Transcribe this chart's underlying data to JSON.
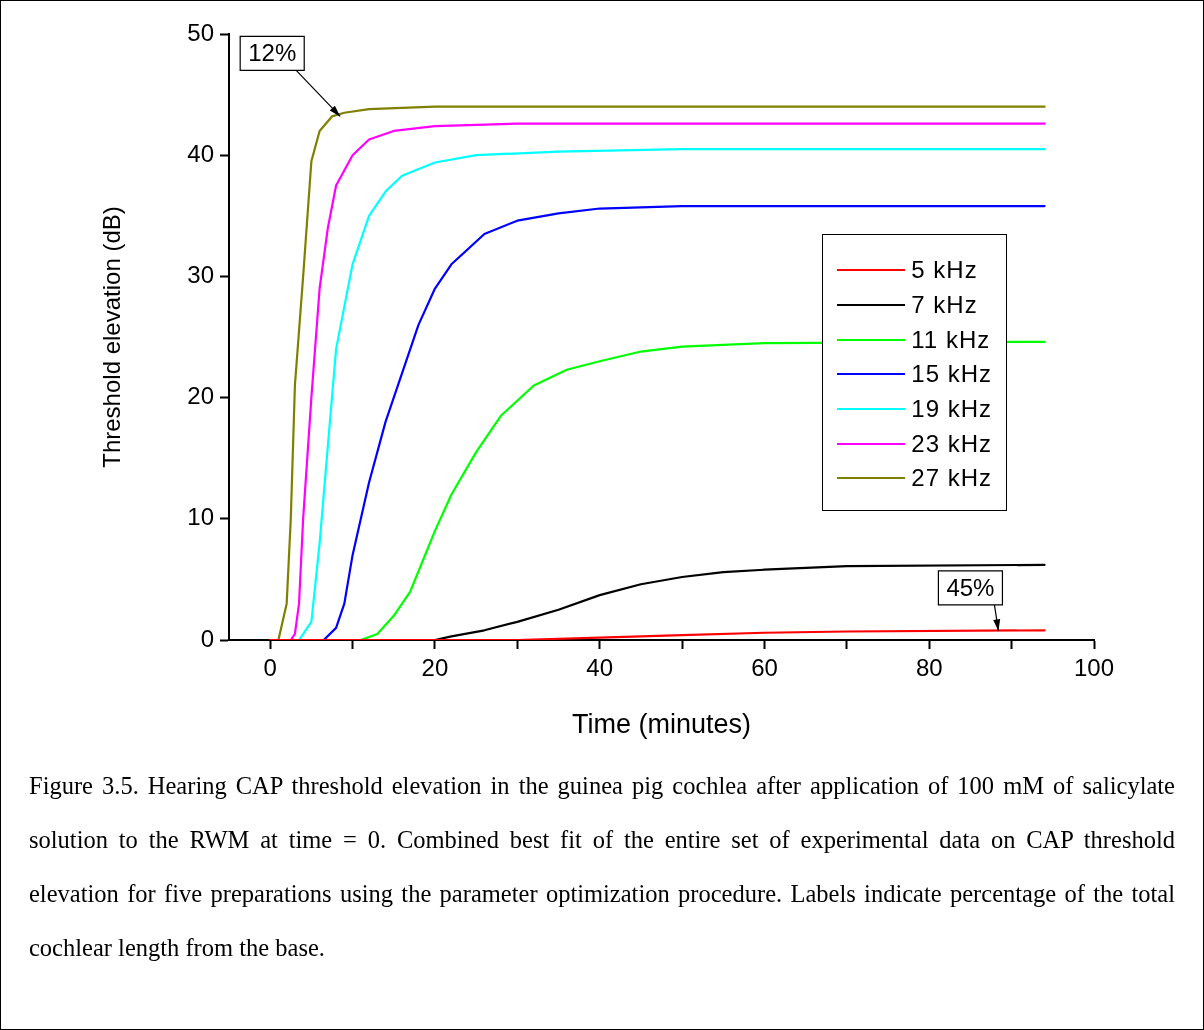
{
  "chart_data": {
    "type": "line",
    "xlabel": "Time (minutes)",
    "ylabel": "Threshold elevation (dB)",
    "xlim": [
      -5,
      100
    ],
    "xticks": [
      0,
      {
        "value": 10,
        "label": null
      },
      20,
      {
        "value": 30,
        "label": null
      },
      40,
      {
        "value": 50,
        "label": null
      },
      60,
      {
        "value": 70,
        "label": null
      },
      80,
      {
        "value": 90,
        "label": null
      },
      100
    ],
    "ylim": [
      0,
      50
    ],
    "yticks": [
      0,
      10,
      20,
      30,
      40,
      50
    ],
    "grid": false,
    "legend": "right",
    "marker": "none",
    "line_style": "solid",
    "series": [
      {
        "name": "5 kHz",
        "color": "#ff0000",
        "x": [
          0,
          30,
          40,
          50,
          60,
          70,
          94
        ],
        "values": [
          0,
          0,
          0.2,
          0.4,
          0.6,
          0.7,
          0.8
        ]
      },
      {
        "name": "7 kHz",
        "color": "#000000",
        "x": [
          0,
          20,
          22,
          26,
          30,
          35,
          40,
          45,
          50,
          55,
          60,
          70,
          94
        ],
        "values": [
          0,
          0,
          0.3,
          0.8,
          1.5,
          2.5,
          3.7,
          4.6,
          5.2,
          5.6,
          5.8,
          6.1,
          6.2
        ]
      },
      {
        "name": "11 kHz",
        "color": "#00ff00",
        "x": [
          0,
          11,
          13,
          15,
          17,
          20,
          22,
          25,
          28,
          32,
          36,
          40,
          45,
          50,
          60,
          94
        ],
        "values": [
          0,
          0,
          0.5,
          2,
          4,
          9,
          12,
          15.5,
          18.5,
          21,
          22.3,
          23,
          23.8,
          24.2,
          24.5,
          24.6
        ]
      },
      {
        "name": "15 kHz",
        "color": "#0000ff",
        "x": [
          0,
          6.5,
          8,
          9,
          10,
          12,
          14,
          16,
          18,
          20,
          22,
          26,
          30,
          35,
          40,
          50,
          94
        ],
        "values": [
          0,
          0,
          1,
          3,
          7,
          13,
          18,
          22,
          26,
          29,
          31,
          33.5,
          34.6,
          35.2,
          35.6,
          35.8,
          35.8
        ]
      },
      {
        "name": "19 kHz",
        "color": "#00ffff",
        "x": [
          0,
          3.5,
          5,
          6,
          7,
          8,
          10,
          12,
          14,
          16,
          20,
          25,
          35,
          50,
          94
        ],
        "values": [
          0,
          0,
          1.5,
          8,
          16,
          24,
          31,
          35,
          37,
          38.3,
          39.4,
          40,
          40.3,
          40.5,
          40.5
        ]
      },
      {
        "name": "23 kHz",
        "color": "#ff00ff",
        "x": [
          0,
          2.5,
          3,
          3.5,
          4,
          5,
          6,
          7,
          8,
          10,
          12,
          15,
          20,
          30,
          94
        ],
        "values": [
          0,
          0,
          0.5,
          3,
          10,
          20,
          29,
          34,
          37.5,
          40,
          41.3,
          42,
          42.4,
          42.6,
          42.6
        ]
      },
      {
        "name": "27 kHz",
        "color": "#808000",
        "x": [
          0,
          1,
          2,
          2.5,
          3,
          4,
          5,
          6,
          7.5,
          9,
          12,
          20,
          94
        ],
        "values": [
          0,
          0,
          3,
          10,
          21,
          30,
          39.5,
          42,
          43.2,
          43.5,
          43.8,
          44,
          44
        ]
      }
    ],
    "annotations": [
      {
        "text": "12%",
        "x": 8.5,
        "y": 43.2
      },
      {
        "text": "45%",
        "x": 88.4,
        "y": 0.75
      },
      "Figure 3.5. Hearing CAP threshold elevation in the guinea pig cochlea after application of 100 mM of salicylate solution to the RWM at time = 0. Combined best fit of the entire set of experimental data on CAP threshold elevation for five preparations using the parameter optimization procedure. Labels indicate percentage of the total cochlear length from the base."
    ]
  }
}
